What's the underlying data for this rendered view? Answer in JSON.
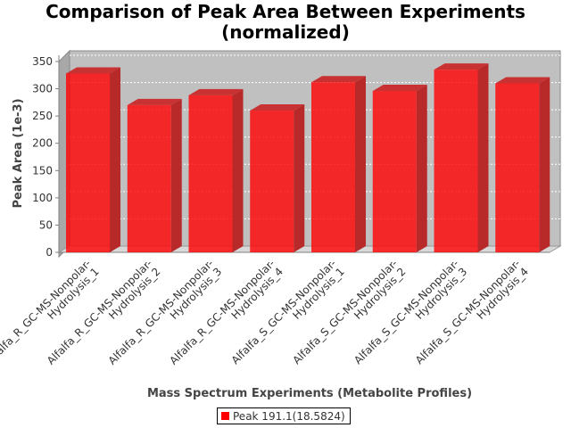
{
  "chart_data": {
    "type": "bar",
    "title_lines": [
      "Comparison of Peak Area Between Experiments",
      "(normalized)"
    ],
    "xlabel": "Mass Spectrum Experiments (Metabolite Profiles)",
    "ylabel": "Peak Area (1e-3)",
    "ylim": [
      0,
      350
    ],
    "yticks": [
      0,
      50,
      100,
      150,
      200,
      250,
      300,
      350
    ],
    "grid": true,
    "legend_position": "bottom",
    "categories": [
      [
        "Alfalfa_R_GC-MS-Nonpolar-",
        "Hydrolysis_1"
      ],
      [
        "Alfalfa_R_GC-MS-Nonpolar-",
        "Hydrolysis_2"
      ],
      [
        "Alfalfa_R_GC-MS-Nonpolar-",
        "Hydrolysis_3"
      ],
      [
        "Alfalfa_R_GC-MS-Nonpolar-",
        "Hydrolysis_4"
      ],
      [
        "Alfalfa_S_GC-MS-Nonpolar-",
        "Hydrolysis_1"
      ],
      [
        "Alfalfa_S_GC-MS-Nonpolar-",
        "Hydrolysis_2"
      ],
      [
        "Alfalfa_S_GC-MS-Nonpolar-",
        "Hydrolysis_3"
      ],
      [
        "Alfalfa_S_GC-MS-Nonpolar-",
        "Hydrolysis_4"
      ]
    ],
    "series": [
      {
        "name": "Peak 191.1(18.5824)",
        "color": "#ff0000",
        "values": [
          328,
          270,
          288,
          260,
          312,
          296,
          335,
          310
        ]
      }
    ]
  }
}
